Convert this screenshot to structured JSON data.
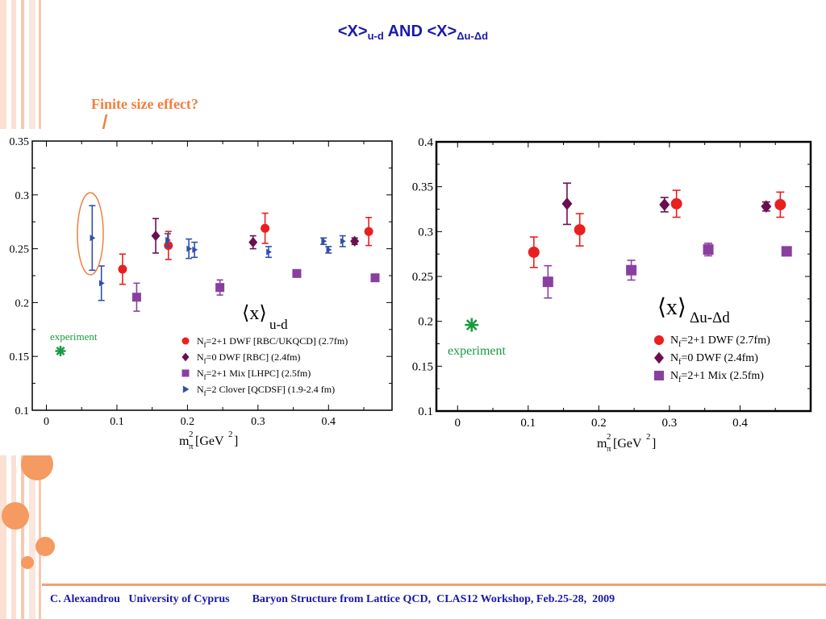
{
  "colors": {
    "ud_red": "#e82020",
    "ud_diamond": "#6a1050",
    "ud_square": "#8a3fa0",
    "ud_tri": "#3050a8",
    "annot": "#f08040",
    "experiment": "#1a9a40"
  },
  "slide": {
    "title_main": "<X>",
    "title_sub1": "u-d",
    "title_and": " AND ",
    "title_main2": "<X>",
    "title_sub2": "Δu-Δd",
    "annotation": "Finite size effect?",
    "footer_author": "C. Alexandrou   University of Cyprus",
    "footer_event": "Baryon Structure from Lattice QCD,  CLAS12 Workshop, Feb.25-28,  2009"
  },
  "chart_data": [
    {
      "type": "scatter",
      "xlabel_main": "m",
      "xlabel_sup": "2",
      "xlabel_sub": "π",
      "xlabel_unit": "[GeV",
      "xlabel_unit_sup": "2",
      "xlabel_close": "]",
      "xlim": [
        -0.02,
        0.49
      ],
      "ylim": [
        0.1,
        0.35
      ],
      "xticks": [
        0,
        0.1,
        0.2,
        0.3,
        0.4
      ],
      "xtick_labels": [
        "0",
        "0.1",
        "0.2",
        "0.3",
        "0.4"
      ],
      "yticks": [
        0.1,
        0.15,
        0.2,
        0.25,
        0.3,
        0.35
      ],
      "ytick_labels": [
        "0.1",
        "0.15",
        "0.2",
        "0.25",
        "0.3",
        "0.35"
      ],
      "inset_label_main": "⟨x⟩",
      "inset_label_sub": "u-d",
      "experiment_label": "experiment",
      "experiment": {
        "x": 0.02,
        "y": 0.155
      },
      "series": [
        {
          "name": "Nf=2+1 DWF [RBC/UKQCD] (2.7fm)",
          "legend_pre": "N",
          "legend_sub": "f",
          "legend_post": "=2+1 DWF [RBC/UKQCD] (2.7fm)",
          "marker": "circle",
          "color": "#e82020",
          "points": [
            {
              "x": 0.108,
              "y": 0.231,
              "err": 0.014
            },
            {
              "x": 0.173,
              "y": 0.253,
              "err": 0.013
            },
            {
              "x": 0.31,
              "y": 0.269,
              "err": 0.014
            },
            {
              "x": 0.457,
              "y": 0.266,
              "err": 0.013
            }
          ]
        },
        {
          "name": "Nf=0 DWF [RBC] (2.4fm)",
          "legend_pre": "N",
          "legend_sub": "f",
          "legend_post": "=0 DWF [RBC] (2.4fm)",
          "marker": "diamond",
          "color": "#6a1050",
          "points": [
            {
              "x": 0.155,
              "y": 0.262,
              "err": 0.016
            },
            {
              "x": 0.293,
              "y": 0.256,
              "err": 0.006
            },
            {
              "x": 0.437,
              "y": 0.257,
              "err": 0.003
            }
          ]
        },
        {
          "name": "Nf=2+1 Mix [LHPC] (2.5fm)",
          "legend_pre": "N",
          "legend_sub": "f",
          "legend_post": "=2+1 Mix [LHPC] (2.5fm)",
          "marker": "square",
          "color": "#8a3fa0",
          "points": [
            {
              "x": 0.128,
              "y": 0.205,
              "err": 0.013
            },
            {
              "x": 0.246,
              "y": 0.214,
              "err": 0.007
            },
            {
              "x": 0.355,
              "y": 0.227,
              "err": 0.003
            },
            {
              "x": 0.466,
              "y": 0.223,
              "err": 0.003
            }
          ]
        },
        {
          "name": "Nf=2 Clover [QCDSF] (1.9-2.4 fm)",
          "legend_pre": "N",
          "legend_sub": "f",
          "legend_post": "=2 Clover [QCDSF] (1.9-2.4 fm)",
          "marker": "triangle",
          "color": "#3050a8",
          "points": [
            {
              "x": 0.065,
              "y": 0.26,
              "err": 0.03
            },
            {
              "x": 0.078,
              "y": 0.218,
              "err": 0.016
            },
            {
              "x": 0.172,
              "y": 0.258,
              "err": 0.006
            },
            {
              "x": 0.202,
              "y": 0.25,
              "err": 0.009
            },
            {
              "x": 0.21,
              "y": 0.249,
              "err": 0.007
            },
            {
              "x": 0.315,
              "y": 0.247,
              "err": 0.005
            },
            {
              "x": 0.393,
              "y": 0.257,
              "err": 0.003
            },
            {
              "x": 0.4,
              "y": 0.249,
              "err": 0.003
            },
            {
              "x": 0.42,
              "y": 0.257,
              "err": 0.005
            }
          ]
        }
      ]
    },
    {
      "type": "scatter",
      "xlabel_main": "m",
      "xlabel_sup": "2",
      "xlabel_sub": "π",
      "xlabel_unit": "[GeV",
      "xlabel_unit_sup": "2",
      "xlabel_close": "]",
      "xlim": [
        -0.03,
        0.5
      ],
      "ylim": [
        0.1,
        0.4
      ],
      "xticks": [
        0,
        0.1,
        0.2,
        0.3,
        0.4
      ],
      "xtick_labels": [
        "0",
        "0.1",
        "0.2",
        "0.3",
        "0.4"
      ],
      "yticks": [
        0.1,
        0.15,
        0.2,
        0.25,
        0.3,
        0.35,
        0.4
      ],
      "ytick_labels": [
        "0.1",
        "0.15",
        "0.2",
        "0.25",
        "0.3",
        "0.35",
        "0.4"
      ],
      "inset_label_main": "⟨x⟩",
      "inset_label_sub": "Δu-Δd",
      "experiment_label": "experiment",
      "experiment": {
        "x": 0.02,
        "y": 0.196
      },
      "series": [
        {
          "name": "Nf=2+1 DWF (2.7fm)",
          "legend_pre": "N",
          "legend_sub": "f",
          "legend_post": "=2+1 DWF (2.7fm)",
          "marker": "circle",
          "color": "#e82020",
          "points": [
            {
              "x": 0.108,
              "y": 0.277,
              "err": 0.017
            },
            {
              "x": 0.173,
              "y": 0.302,
              "err": 0.018
            },
            {
              "x": 0.31,
              "y": 0.331,
              "err": 0.015
            },
            {
              "x": 0.457,
              "y": 0.33,
              "err": 0.014
            }
          ]
        },
        {
          "name": "Nf=0 DWF (2.4fm)",
          "legend_pre": "N",
          "legend_sub": "f",
          "legend_post": "=0 DWF (2.4fm)",
          "marker": "diamond",
          "color": "#6a1050",
          "points": [
            {
              "x": 0.155,
              "y": 0.331,
              "err": 0.023
            },
            {
              "x": 0.293,
              "y": 0.33,
              "err": 0.008
            },
            {
              "x": 0.437,
              "y": 0.328,
              "err": 0.005
            }
          ]
        },
        {
          "name": "Nf=2+1 Mix (2.5fm)",
          "legend_pre": "N",
          "legend_sub": "f",
          "legend_post": "=2+1 Mix (2.5fm)",
          "marker": "square",
          "color": "#8a3fa0",
          "points": [
            {
              "x": 0.128,
              "y": 0.244,
              "err": 0.018
            },
            {
              "x": 0.246,
              "y": 0.257,
              "err": 0.011
            },
            {
              "x": 0.355,
              "y": 0.28,
              "err": 0.007
            },
            {
              "x": 0.466,
              "y": 0.278,
              "err": 0.005
            }
          ]
        }
      ]
    }
  ]
}
